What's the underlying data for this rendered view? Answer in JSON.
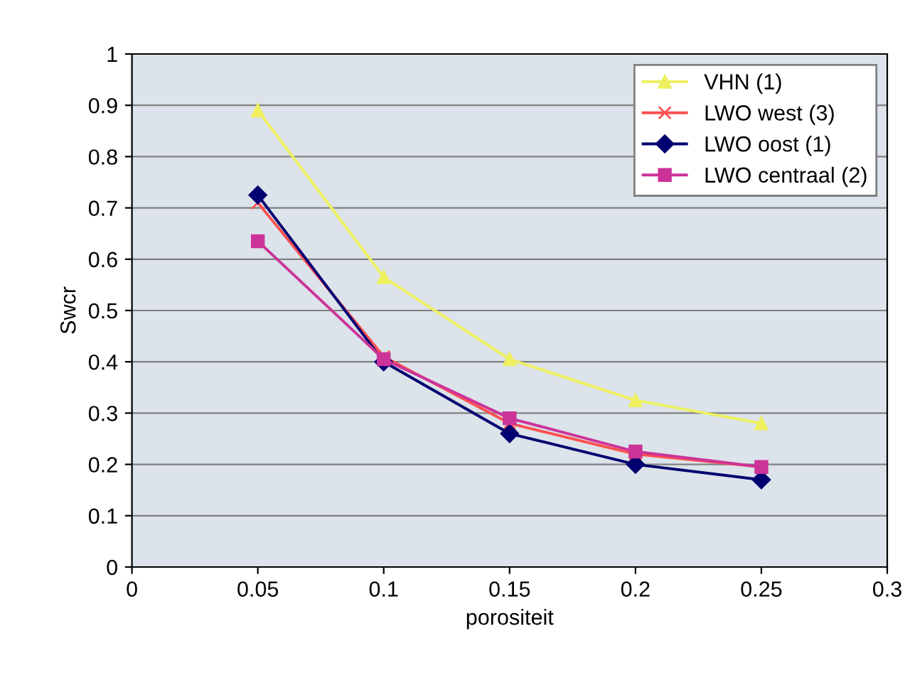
{
  "chart_data": {
    "type": "line",
    "xlabel": "porositeit",
    "ylabel": "Swcr",
    "x": [
      0.05,
      0.1,
      0.15,
      0.2,
      0.25
    ],
    "series": [
      {
        "name": "VHN (1)",
        "color": "#eef060",
        "marker": "triangle",
        "values": [
          0.89,
          0.565,
          0.405,
          0.325,
          0.28
        ]
      },
      {
        "name": "LWO west (3)",
        "color": "#ff5050",
        "marker": "cross",
        "values": [
          0.71,
          0.41,
          0.28,
          0.22,
          0.195
        ]
      },
      {
        "name": "LWO oost (1)",
        "color": "#000070",
        "marker": "diamond",
        "values": [
          0.725,
          0.4,
          0.26,
          0.2,
          0.17
        ]
      },
      {
        "name": "LWO centraal (2)",
        "color": "#cc3399",
        "marker": "square",
        "values": [
          0.635,
          0.405,
          0.29,
          0.225,
          0.195
        ]
      }
    ],
    "xlim": [
      0,
      0.3
    ],
    "xticks": [
      0,
      0.05,
      0.1,
      0.15,
      0.2,
      0.25,
      0.3
    ],
    "ylim": [
      0,
      1
    ],
    "yticks": [
      0,
      0.1,
      0.2,
      0.3,
      0.4,
      0.5,
      0.6,
      0.7,
      0.8,
      0.9,
      1
    ],
    "grid": "y",
    "legend": "top right",
    "line_style": "solid"
  }
}
